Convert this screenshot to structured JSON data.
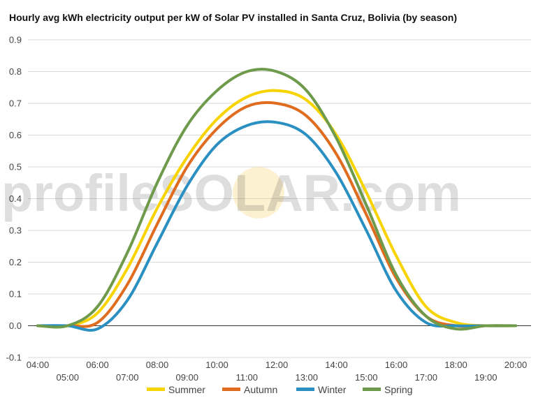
{
  "chart_data": {
    "type": "line",
    "title": "Hourly avg kWh electricity output per kW of Solar PV installed in Santa Cruz, Bolivia (by season)",
    "xlabel": "",
    "ylabel": "",
    "x": [
      "04:00",
      "05:00",
      "06:00",
      "07:00",
      "08:00",
      "09:00",
      "10:00",
      "11:00",
      "12:00",
      "13:00",
      "14:00",
      "15:00",
      "16:00",
      "17:00",
      "18:00",
      "19:00",
      "20:00"
    ],
    "ylim": [
      -0.1,
      0.9
    ],
    "yticks": [
      "-0.1",
      "0.0",
      "0.1",
      "0.2",
      "0.3",
      "0.4",
      "0.5",
      "0.6",
      "0.7",
      "0.8",
      "0.9"
    ],
    "grid": true,
    "legend": "bottom",
    "watermark": "profileSOLAR.com",
    "series": [
      {
        "name": "Summer",
        "color": "#f7d300",
        "values": [
          0.0,
          0.0,
          0.04,
          0.18,
          0.37,
          0.53,
          0.65,
          0.72,
          0.74,
          0.71,
          0.6,
          0.42,
          0.22,
          0.06,
          0.01,
          0.0,
          0.0
        ]
      },
      {
        "name": "Autumn",
        "color": "#e06c1f",
        "values": [
          0.0,
          0.0,
          0.01,
          0.13,
          0.32,
          0.5,
          0.62,
          0.69,
          0.7,
          0.66,
          0.54,
          0.35,
          0.15,
          0.03,
          0.0,
          0.0,
          0.0
        ]
      },
      {
        "name": "Winter",
        "color": "#2a8fc1",
        "values": [
          0.0,
          0.0,
          -0.01,
          0.08,
          0.26,
          0.44,
          0.57,
          0.63,
          0.64,
          0.6,
          0.48,
          0.3,
          0.11,
          0.01,
          0.0,
          0.0,
          0.0
        ]
      },
      {
        "name": "Spring",
        "color": "#6e9a4b",
        "values": [
          0.0,
          0.0,
          0.06,
          0.23,
          0.45,
          0.63,
          0.74,
          0.8,
          0.8,
          0.74,
          0.59,
          0.38,
          0.16,
          0.03,
          -0.01,
          0.0,
          0.0
        ]
      }
    ]
  }
}
